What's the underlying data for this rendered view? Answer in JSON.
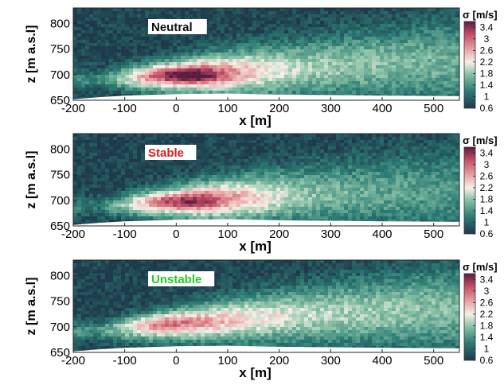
{
  "chart_data": [
    {
      "type": "heatmap",
      "label": "Neutral",
      "label_color": "#111111",
      "xlabel": "x [m]",
      "ylabel": "z [m a.s.l]",
      "xlim": [
        -200,
        550
      ],
      "ylim": [
        650,
        830
      ],
      "xticks": [
        -200,
        -100,
        0,
        100,
        200,
        300,
        400,
        500
      ],
      "yticks": [
        650,
        700,
        750,
        800
      ],
      "colorbar": {
        "label": "σ [m/s]",
        "min": 0.6,
        "max": 3.6,
        "ticks": [
          3.4,
          3,
          2.6,
          2.2,
          1.8,
          1.4,
          1,
          0.6
        ]
      },
      "terrain": [
        [
          -200,
          652
        ],
        [
          -150,
          656
        ],
        [
          -100,
          659
        ],
        [
          0,
          662
        ],
        [
          100,
          663
        ],
        [
          200,
          661
        ],
        [
          300,
          660
        ],
        [
          400,
          659
        ],
        [
          550,
          658
        ]
      ],
      "plume": {
        "core": [
          20,
          698
        ],
        "core_sigma": 3.5,
        "spread": [
          [
            -150,
            690,
            1.3
          ],
          [
            -50,
            696,
            2.6
          ],
          [
            50,
            700,
            3.0
          ],
          [
            150,
            706,
            2.4
          ],
          [
            250,
            712,
            1.9
          ],
          [
            350,
            718,
            1.8
          ],
          [
            450,
            722,
            1.7
          ],
          [
            550,
            725,
            1.6
          ]
        ]
      }
    },
    {
      "type": "heatmap",
      "label": "Stable",
      "label_color": "#d92020",
      "xlabel": "x [m]",
      "ylabel": "z [m a.s.l]",
      "xlim": [
        -200,
        550
      ],
      "ylim": [
        650,
        830
      ],
      "xticks": [
        -200,
        -100,
        0,
        100,
        200,
        300,
        400,
        500
      ],
      "yticks": [
        650,
        700,
        750,
        800
      ],
      "colorbar": {
        "label": "σ [m/s]",
        "min": 0.6,
        "max": 3.6,
        "ticks": [
          3.4,
          3,
          2.6,
          2.2,
          1.8,
          1.4,
          1,
          0.6
        ]
      },
      "terrain": [
        [
          -200,
          652
        ],
        [
          -150,
          656
        ],
        [
          -100,
          659
        ],
        [
          0,
          662
        ],
        [
          100,
          663
        ],
        [
          200,
          661
        ],
        [
          300,
          660
        ],
        [
          400,
          659
        ],
        [
          550,
          658
        ]
      ],
      "plume": {
        "core": [
          10,
          698
        ],
        "core_sigma": 3.3,
        "spread": [
          [
            -150,
            688,
            1.2
          ],
          [
            -50,
            694,
            2.4
          ],
          [
            50,
            700,
            2.9
          ],
          [
            150,
            705,
            2.4
          ],
          [
            250,
            710,
            1.8
          ],
          [
            350,
            714,
            1.6
          ],
          [
            450,
            716,
            1.5
          ],
          [
            550,
            718,
            1.4
          ]
        ]
      }
    },
    {
      "type": "heatmap",
      "label": "Unstable",
      "label_color": "#22cc22",
      "xlabel": "x [m]",
      "ylabel": "z [m a.s.l]",
      "xlim": [
        -200,
        550
      ],
      "ylim": [
        650,
        830
      ],
      "xticks": [
        -200,
        -100,
        0,
        100,
        200,
        300,
        400,
        500
      ],
      "yticks": [
        650,
        700,
        750,
        800
      ],
      "colorbar": {
        "label": "σ [m/s]",
        "min": 0.6,
        "max": 3.6,
        "ticks": [
          3.4,
          3,
          2.6,
          2.2,
          1.8,
          1.4,
          1,
          0.6
        ]
      },
      "terrain": [
        [
          -200,
          652
        ],
        [
          -150,
          656
        ],
        [
          -100,
          659
        ],
        [
          0,
          662
        ],
        [
          100,
          663
        ],
        [
          200,
          661
        ],
        [
          300,
          660
        ],
        [
          400,
          659
        ],
        [
          550,
          658
        ]
      ],
      "plume": {
        "core": [
          -10,
          710
        ],
        "core_sigma": 3.0,
        "spread": [
          [
            -150,
            692,
            1.4
          ],
          [
            -50,
            700,
            2.5
          ],
          [
            50,
            708,
            2.6
          ],
          [
            150,
            716,
            2.3
          ],
          [
            250,
            722,
            2.0
          ],
          [
            350,
            728,
            1.9
          ],
          [
            450,
            732,
            1.8
          ],
          [
            550,
            735,
            1.7
          ]
        ]
      }
    }
  ]
}
